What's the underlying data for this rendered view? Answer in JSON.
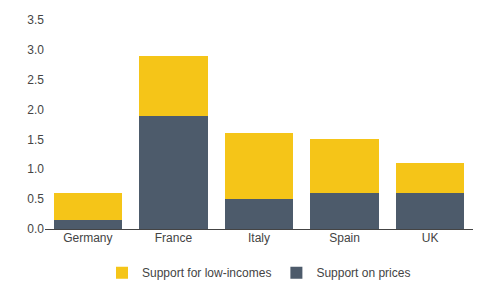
{
  "chart_data": {
    "type": "bar",
    "stacked": true,
    "categories": [
      "Germany",
      "France",
      "Italy",
      "Spain",
      "UK"
    ],
    "series": [
      {
        "name": "Support on prices",
        "color": "#4d5b6b",
        "values": [
          0.15,
          1.9,
          0.5,
          0.6,
          0.6
        ]
      },
      {
        "name": "Support for low-incomes",
        "color": "#f5c518",
        "values": [
          0.45,
          1.0,
          1.1,
          0.9,
          0.5
        ]
      }
    ],
    "ylim": [
      0,
      3.5
    ],
    "yticks": [
      {
        "value": 0.0,
        "label": "0.0"
      },
      0.5,
      {
        "value": 1.0,
        "label": "1.0"
      },
      1.5,
      {
        "value": 2.0,
        "label": "2.0"
      },
      2.5,
      {
        "value": 3.0,
        "label": "3.0"
      },
      3.5
    ],
    "grid": false,
    "legend": "bottom"
  }
}
